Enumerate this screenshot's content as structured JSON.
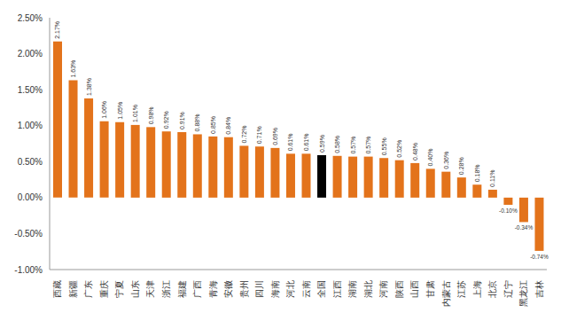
{
  "chart_data": {
    "type": "bar",
    "categories": [
      "西藏",
      "新疆",
      "广东",
      "重庆",
      "宁夏",
      "山东",
      "天津",
      "浙江",
      "福建",
      "广西",
      "青海",
      "安徽",
      "贵州",
      "四川",
      "海南",
      "河北",
      "云南",
      "全国",
      "江西",
      "湖南",
      "湖北",
      "河南",
      "陕西",
      "山西",
      "甘肃",
      "内蒙古",
      "江苏",
      "上海",
      "北京",
      "辽宁",
      "黑龙江",
      "吉林"
    ],
    "values": [
      2.17,
      1.63,
      1.38,
      1.06,
      1.05,
      1.01,
      0.98,
      0.92,
      0.91,
      0.88,
      0.85,
      0.84,
      0.72,
      0.71,
      0.69,
      0.61,
      0.61,
      0.59,
      0.58,
      0.57,
      0.57,
      0.55,
      0.52,
      0.48,
      0.4,
      0.36,
      0.28,
      0.18,
      0.11,
      -0.1,
      -0.34,
      -0.74
    ],
    "value_labels": [
      "2.17%",
      "1.63%",
      "1.38%",
      "1.06%",
      "1.05%",
      "1.01%",
      "0.98%",
      "0.92%",
      "0.91%",
      "0.88%",
      "0.85%",
      "0.84%",
      "0.72%",
      "0.71%",
      "0.69%",
      "0.61%",
      "0.61%",
      "0.59%",
      "0.58%",
      "0.57%",
      "0.57%",
      "0.55%",
      "0.52%",
      "0.48%",
      "0.40%",
      "0.36%",
      "0.28%",
      "0.18%",
      "0.11%",
      "-0.10%",
      "-0.34%",
      "-0.74%"
    ],
    "colors": [
      "#E3731B",
      "#E3731B",
      "#E3731B",
      "#E3731B",
      "#E3731B",
      "#E3731B",
      "#E3731B",
      "#E3731B",
      "#E3731B",
      "#E3731B",
      "#E3731B",
      "#E3731B",
      "#E3731B",
      "#E3731B",
      "#E3731B",
      "#E3731B",
      "#E3731B",
      "#000000",
      "#E3731B",
      "#E3731B",
      "#E3731B",
      "#E3731B",
      "#E3731B",
      "#E3731B",
      "#E3731B",
      "#E3731B",
      "#E3731B",
      "#E3731B",
      "#E3731B",
      "#E3731B",
      "#E3731B",
      "#E3731B"
    ],
    "ylim": [
      -1.0,
      2.5
    ],
    "yticks": [
      {
        "value": -1.0,
        "label": "-1.00%"
      },
      {
        "value": -0.5,
        "label": "-0.50%"
      },
      {
        "value": 0,
        "label": "0.00%"
      },
      {
        "value": 0.5,
        "label": "0.50%"
      },
      {
        "value": 1.0,
        "label": "1.00%"
      },
      {
        "value": 1.5,
        "label": "1.50%"
      },
      {
        "value": 2.0,
        "label": "2.00%"
      },
      {
        "value": 2.5,
        "label": "2.50%"
      }
    ],
    "grid": false,
    "data_labels": true
  }
}
